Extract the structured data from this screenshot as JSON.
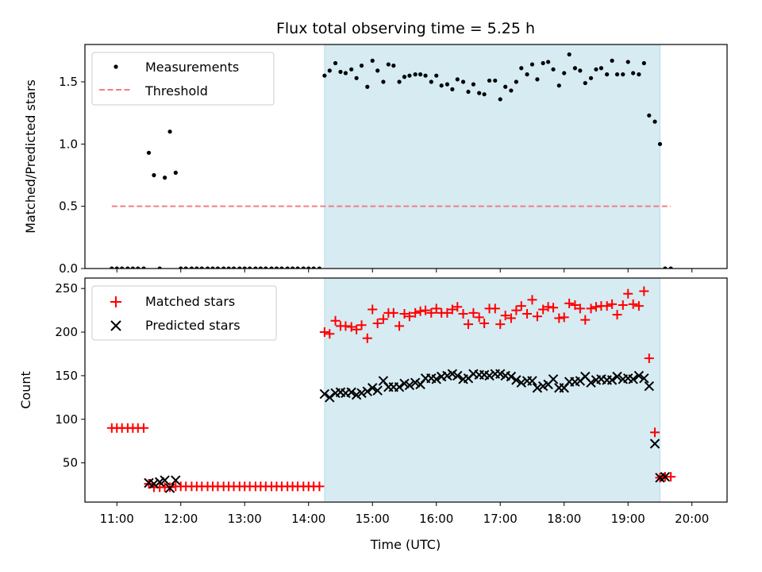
{
  "chart_data": {
    "type": "scatter",
    "title": "Flux total observing time = 5.25 h",
    "xlabel": "Time (UTC)",
    "x_ticks": [
      "11:00",
      "12:00",
      "13:00",
      "14:00",
      "15:00",
      "16:00",
      "17:00",
      "18:00",
      "19:00",
      "20:00"
    ],
    "xlim_hours": [
      10.5,
      20.55
    ],
    "shaded_interval_hours": [
      14.25,
      19.5
    ],
    "shaded_color": "#add8e6",
    "top": {
      "ylabel": "Matched/Predicted stars",
      "ylim": [
        0,
        1.8
      ],
      "y_ticks": [
        "0.0",
        "0.5",
        "1.0",
        "1.5"
      ],
      "legend": [
        "Measurements",
        "Threshold"
      ],
      "threshold": {
        "y": 0.5,
        "x_range_hours": [
          10.92,
          19.67
        ],
        "color": "#f08080"
      },
      "measurements": {
        "color": "#000000",
        "x_hours": [
          10.92,
          11.0,
          11.08,
          11.17,
          11.25,
          11.33,
          11.42,
          11.5,
          11.58,
          11.67,
          11.75,
          11.83,
          11.92,
          12.0,
          12.08,
          12.17,
          12.25,
          12.33,
          12.42,
          12.5,
          12.58,
          12.67,
          12.75,
          12.83,
          12.92,
          13.0,
          13.08,
          13.17,
          13.25,
          13.33,
          13.42,
          13.5,
          13.58,
          13.67,
          13.75,
          13.83,
          13.92,
          14.0,
          14.08,
          14.17,
          14.25,
          14.33,
          14.42,
          14.5,
          14.58,
          14.67,
          14.75,
          14.83,
          14.92,
          15.0,
          15.08,
          15.17,
          15.25,
          15.33,
          15.42,
          15.5,
          15.58,
          15.67,
          15.75,
          15.83,
          15.92,
          16.0,
          16.08,
          16.17,
          16.25,
          16.33,
          16.42,
          16.5,
          16.58,
          16.67,
          16.75,
          16.83,
          16.92,
          17.0,
          17.08,
          17.17,
          17.25,
          17.33,
          17.42,
          17.5,
          17.58,
          17.67,
          17.75,
          17.83,
          17.92,
          18.0,
          18.08,
          18.17,
          18.25,
          18.33,
          18.42,
          18.5,
          18.58,
          18.67,
          18.75,
          18.83,
          18.92,
          19.0,
          19.08,
          19.17,
          19.25,
          19.33,
          19.42,
          19.5,
          19.58,
          19.67
        ],
        "y": [
          0,
          0,
          0,
          0,
          0,
          0,
          0,
          0.93,
          0.75,
          0,
          0.73,
          1.1,
          0.77,
          0,
          0,
          0,
          0,
          0,
          0,
          0,
          0,
          0,
          0,
          0,
          0,
          0,
          0,
          0,
          0,
          0,
          0,
          0,
          0,
          0,
          0,
          0,
          0,
          0,
          0,
          0,
          1.55,
          1.59,
          1.65,
          1.58,
          1.57,
          1.6,
          1.53,
          1.63,
          1.46,
          1.67,
          1.59,
          1.5,
          1.64,
          1.63,
          1.5,
          1.54,
          1.55,
          1.56,
          1.56,
          1.55,
          1.5,
          1.55,
          1.47,
          1.48,
          1.44,
          1.52,
          1.5,
          1.42,
          1.48,
          1.41,
          1.4,
          1.51,
          1.51,
          1.36,
          1.46,
          1.43,
          1.5,
          1.61,
          1.56,
          1.64,
          1.52,
          1.65,
          1.66,
          1.6,
          1.47,
          1.57,
          1.72,
          1.61,
          1.59,
          1.49,
          1.53,
          1.6,
          1.61,
          1.56,
          1.67,
          1.56,
          1.56,
          1.66,
          1.57,
          1.56,
          1.65,
          1.23,
          1.18,
          1.0,
          0,
          0
        ]
      }
    },
    "bottom": {
      "ylabel": "Count",
      "ylim": [
        5,
        262
      ],
      "y_ticks": [
        "50",
        "100",
        "150",
        "200",
        "250"
      ],
      "legend": [
        "Matched stars",
        "Predicted stars"
      ],
      "series": [
        {
          "name": "Matched stars",
          "marker": "+",
          "color": "#ff0000",
          "x_hours": [
            10.92,
            11.0,
            11.08,
            11.17,
            11.25,
            11.33,
            11.42,
            11.5,
            11.58,
            11.67,
            11.75,
            11.83,
            11.92,
            12.0,
            12.08,
            12.17,
            12.25,
            12.33,
            12.42,
            12.5,
            12.58,
            12.67,
            12.75,
            12.83,
            12.92,
            13.0,
            13.08,
            13.17,
            13.25,
            13.33,
            13.42,
            13.5,
            13.58,
            13.67,
            13.75,
            13.83,
            13.92,
            14.0,
            14.08,
            14.17,
            14.25,
            14.33,
            14.42,
            14.5,
            14.58,
            14.67,
            14.75,
            14.83,
            14.92,
            15.0,
            15.08,
            15.17,
            15.25,
            15.33,
            15.42,
            15.5,
            15.58,
            15.67,
            15.75,
            15.83,
            15.92,
            16.0,
            16.08,
            16.17,
            16.25,
            16.33,
            16.42,
            16.5,
            16.58,
            16.67,
            16.75,
            16.83,
            16.92,
            17.0,
            17.08,
            17.17,
            17.25,
            17.33,
            17.42,
            17.5,
            17.58,
            17.67,
            17.75,
            17.83,
            17.92,
            18.0,
            18.08,
            18.17,
            18.25,
            18.33,
            18.42,
            18.5,
            18.58,
            18.67,
            18.75,
            18.83,
            18.92,
            19.0,
            19.08,
            19.17,
            19.25,
            19.33,
            19.42,
            19.5,
            19.58,
            19.67
          ],
          "values": [
            90,
            90,
            90,
            90,
            90,
            90,
            90,
            26,
            22,
            22,
            22,
            22,
            23,
            23,
            23,
            23,
            23,
            23,
            23,
            23,
            23,
            23,
            23,
            23,
            23,
            23,
            23,
            23,
            23,
            23,
            23,
            23,
            23,
            23,
            23,
            23,
            23,
            23,
            23,
            23,
            200,
            198,
            213,
            207,
            207,
            206,
            203,
            208,
            193,
            226,
            210,
            215,
            222,
            222,
            207,
            221,
            218,
            222,
            224,
            225,
            222,
            227,
            222,
            222,
            226,
            229,
            221,
            209,
            222,
            217,
            210,
            227,
            227,
            209,
            219,
            216,
            225,
            230,
            221,
            237,
            218,
            226,
            229,
            228,
            216,
            217,
            233,
            231,
            227,
            214,
            227,
            229,
            230,
            230,
            232,
            220,
            231,
            244,
            232,
            230,
            247,
            170,
            85,
            33,
            34,
            34
          ]
        },
        {
          "name": "Predicted stars",
          "marker": "x",
          "color": "#000000",
          "x_hours": [
            11.5,
            11.58,
            11.67,
            11.75,
            11.83,
            11.92,
            14.25,
            14.33,
            14.42,
            14.5,
            14.58,
            14.67,
            14.75,
            14.83,
            14.92,
            15.0,
            15.08,
            15.17,
            15.25,
            15.33,
            15.42,
            15.5,
            15.58,
            15.67,
            15.75,
            15.83,
            15.92,
            16.0,
            16.08,
            16.17,
            16.25,
            16.33,
            16.42,
            16.5,
            16.58,
            16.67,
            16.75,
            16.83,
            16.92,
            17.0,
            17.08,
            17.17,
            17.25,
            17.33,
            17.42,
            17.5,
            17.58,
            17.67,
            17.75,
            17.83,
            17.92,
            18.0,
            18.08,
            18.17,
            18.25,
            18.33,
            18.42,
            18.5,
            18.58,
            18.67,
            18.75,
            18.83,
            18.92,
            19.0,
            19.08,
            19.17,
            19.25,
            19.33,
            19.42,
            19.5,
            19.58
          ],
          "values": [
            27,
            26,
            28,
            30,
            21,
            30,
            129,
            125,
            130,
            131,
            130,
            131,
            128,
            130,
            132,
            136,
            133,
            144,
            137,
            137,
            137,
            141,
            139,
            142,
            140,
            147,
            147,
            146,
            149,
            150,
            152,
            150,
            146,
            147,
            152,
            151,
            151,
            150,
            152,
            152,
            150,
            149,
            145,
            142,
            144,
            144,
            136,
            138,
            140,
            146,
            136,
            136,
            143,
            143,
            144,
            149,
            142,
            145,
            146,
            145,
            145,
            149,
            146,
            147,
            146,
            150,
            147,
            138,
            72,
            33,
            34
          ]
        }
      ]
    }
  }
}
